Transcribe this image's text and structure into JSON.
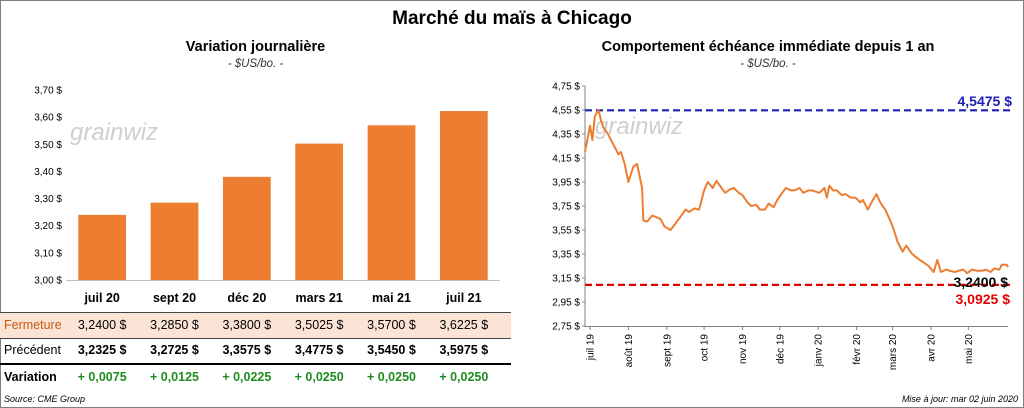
{
  "title": "Marché du maïs à Chicago",
  "left": {
    "subtitle": "Variation  journalière",
    "unit": "- $US/bo. -",
    "watermark": "grainwiz",
    "source": "Source: CME Group"
  },
  "right": {
    "subtitle": "Comportement  échéance immédiate depuis 1 an",
    "unit": "- $US/bo. -",
    "watermark": "grainwiz",
    "update": "Mise à jour: mar 02 juin 2020",
    "high_label": "4,5475 $",
    "low_label": "3,0925 $",
    "last_label": "3,2400 $"
  },
  "table": {
    "rows": [
      {
        "label": "Fermeture",
        "values": [
          "3,2400  $",
          "3,2850  $",
          "3,3800  $",
          "3,5025  $",
          "3,5700  $",
          "3,6225  $"
        ]
      },
      {
        "label": "Précédent",
        "values": [
          "3,2325  $",
          "3,2725  $",
          "3,3575  $",
          "3,4775  $",
          "3,5450  $",
          "3,5975  $"
        ]
      },
      {
        "label": "Variation",
        "values": [
          "+ 0,0075",
          "+ 0,0125",
          "+ 0,0225",
          "+ 0,0250",
          "+ 0,0250",
          "+ 0,0250"
        ]
      }
    ]
  },
  "colors": {
    "bar": "#ED7D31",
    "line": "#ED7D31",
    "high": "#1F1FB3",
    "low": "#E00000",
    "positive": "#1E8C1E",
    "fermeture_bg": "#FBE3D5"
  },
  "chart_data": [
    {
      "type": "bar",
      "title": "Variation  journalière",
      "categories": [
        "juil 20",
        "sept 20",
        "déc 20",
        "mars 21",
        "mai 21",
        "juil 21"
      ],
      "values": [
        3.24,
        3.285,
        3.38,
        3.5025,
        3.57,
        3.6225
      ],
      "ylim": [
        3.0,
        3.7
      ],
      "yticks": [
        3.0,
        3.1,
        3.2,
        3.3,
        3.4,
        3.5,
        3.6,
        3.7
      ],
      "ytick_labels": [
        "3,00 $",
        "3,10 $",
        "3,20 $",
        "3,30 $",
        "3,40 $",
        "3,50 $",
        "3,60 $",
        "3,70 $"
      ],
      "grid": false
    },
    {
      "type": "line",
      "title": "Comportement  échéance immédiate depuis 1 an",
      "ylim": [
        2.75,
        4.75
      ],
      "yticks": [
        2.75,
        2.95,
        3.15,
        3.35,
        3.55,
        3.75,
        3.95,
        4.15,
        4.35,
        4.55,
        4.75
      ],
      "ytick_labels": [
        "2,75 $",
        "2,95 $",
        "3,15 $",
        "3,35 $",
        "3,55 $",
        "3,75 $",
        "3,95 $",
        "4,15 $",
        "4,35 $",
        "4,55 $",
        "4,75 $"
      ],
      "xtick_labels": [
        "juil 19",
        "août 19",
        "sept 19",
        "oct 19",
        "nov 19",
        "déc 19",
        "janv 20",
        "févr 20",
        "mars 20",
        "avr 20",
        "mai 20"
      ],
      "xtick_dates": [
        "2019-07-01",
        "2019-08-01",
        "2019-09-01",
        "2019-10-01",
        "2019-11-01",
        "2019-12-01",
        "2020-01-01",
        "2020-02-01",
        "2020-03-01",
        "2020-04-01",
        "2020-05-01"
      ],
      "x_range": [
        "2019-06-27",
        "2020-06-02"
      ],
      "reference_lines": [
        4.5475,
        3.0925
      ],
      "last_value": 3.24,
      "series": [
        {
          "points": [
            [
              "2019-06-27",
              4.2
            ],
            [
              "2019-07-01",
              4.42
            ],
            [
              "2019-07-03",
              4.3
            ],
            [
              "2019-07-05",
              4.5
            ],
            [
              "2019-07-08",
              4.55
            ],
            [
              "2019-07-10",
              4.46
            ],
            [
              "2019-07-12",
              4.4
            ],
            [
              "2019-07-15",
              4.36
            ],
            [
              "2019-07-17",
              4.32
            ],
            [
              "2019-07-19",
              4.28
            ],
            [
              "2019-07-22",
              4.22
            ],
            [
              "2019-07-24",
              4.18
            ],
            [
              "2019-07-26",
              4.2
            ],
            [
              "2019-07-29",
              4.1
            ],
            [
              "2019-08-01",
              3.95
            ],
            [
              "2019-08-05",
              4.08
            ],
            [
              "2019-08-08",
              4.1
            ],
            [
              "2019-08-12",
              3.9
            ],
            [
              "2019-08-13",
              3.63
            ],
            [
              "2019-08-16",
              3.62
            ],
            [
              "2019-08-20",
              3.67
            ],
            [
              "2019-08-23",
              3.66
            ],
            [
              "2019-08-27",
              3.64
            ],
            [
              "2019-08-30",
              3.58
            ],
            [
              "2019-09-04",
              3.55
            ],
            [
              "2019-09-09",
              3.62
            ],
            [
              "2019-09-12",
              3.66
            ],
            [
              "2019-09-16",
              3.72
            ],
            [
              "2019-09-19",
              3.7
            ],
            [
              "2019-09-23",
              3.73
            ],
            [
              "2019-09-27",
              3.72
            ],
            [
              "2019-10-01",
              3.88
            ],
            [
              "2019-10-04",
              3.95
            ],
            [
              "2019-10-08",
              3.9
            ],
            [
              "2019-10-11",
              3.96
            ],
            [
              "2019-10-15",
              3.9
            ],
            [
              "2019-10-18",
              3.86
            ],
            [
              "2019-10-22",
              3.89
            ],
            [
              "2019-10-25",
              3.9
            ],
            [
              "2019-10-29",
              3.86
            ],
            [
              "2019-11-01",
              3.84
            ],
            [
              "2019-11-05",
              3.78
            ],
            [
              "2019-11-08",
              3.75
            ],
            [
              "2019-11-12",
              3.76
            ],
            [
              "2019-11-15",
              3.72
            ],
            [
              "2019-11-19",
              3.72
            ],
            [
              "2019-11-22",
              3.77
            ],
            [
              "2019-11-26",
              3.74
            ],
            [
              "2019-11-29",
              3.8
            ],
            [
              "2019-12-03",
              3.86
            ],
            [
              "2019-12-06",
              3.9
            ],
            [
              "2019-12-10",
              3.88
            ],
            [
              "2019-12-13",
              3.88
            ],
            [
              "2019-12-17",
              3.9
            ],
            [
              "2019-12-20",
              3.86
            ],
            [
              "2019-12-24",
              3.88
            ],
            [
              "2019-12-27",
              3.88
            ],
            [
              "2020-01-02",
              3.86
            ],
            [
              "2020-01-06",
              3.9
            ],
            [
              "2020-01-08",
              3.82
            ],
            [
              "2020-01-10",
              3.92
            ],
            [
              "2020-01-13",
              3.88
            ],
            [
              "2020-01-16",
              3.88
            ],
            [
              "2020-01-20",
              3.84
            ],
            [
              "2020-01-23",
              3.85
            ],
            [
              "2020-01-27",
              3.82
            ],
            [
              "2020-01-31",
              3.82
            ],
            [
              "2020-02-04",
              3.78
            ],
            [
              "2020-02-06",
              3.8
            ],
            [
              "2020-02-10",
              3.72
            ],
            [
              "2020-02-13",
              3.78
            ],
            [
              "2020-02-17",
              3.85
            ],
            [
              "2020-02-20",
              3.78
            ],
            [
              "2020-02-24",
              3.72
            ],
            [
              "2020-02-28",
              3.63
            ],
            [
              "2020-03-02",
              3.55
            ],
            [
              "2020-03-05",
              3.45
            ],
            [
              "2020-03-09",
              3.37
            ],
            [
              "2020-03-12",
              3.42
            ],
            [
              "2020-03-16",
              3.36
            ],
            [
              "2020-03-19",
              3.33
            ],
            [
              "2020-03-23",
              3.3
            ],
            [
              "2020-03-26",
              3.28
            ],
            [
              "2020-03-30",
              3.25
            ],
            [
              "2020-04-03",
              3.2
            ],
            [
              "2020-04-06",
              3.3
            ],
            [
              "2020-04-09",
              3.2
            ],
            [
              "2020-04-13",
              3.22
            ],
            [
              "2020-04-16",
              3.21
            ],
            [
              "2020-04-20",
              3.2
            ],
            [
              "2020-04-23",
              3.21
            ],
            [
              "2020-04-27",
              3.22
            ],
            [
              "2020-04-30",
              3.19
            ],
            [
              "2020-05-04",
              3.22
            ],
            [
              "2020-05-08",
              3.21
            ],
            [
              "2020-05-12",
              3.21
            ],
            [
              "2020-05-15",
              3.22
            ],
            [
              "2020-05-19",
              3.2
            ],
            [
              "2020-05-22",
              3.23
            ],
            [
              "2020-05-26",
              3.22
            ],
            [
              "2020-05-28",
              3.26
            ],
            [
              "2020-06-01",
              3.26
            ],
            [
              "2020-06-02",
              3.24
            ]
          ]
        }
      ]
    }
  ]
}
